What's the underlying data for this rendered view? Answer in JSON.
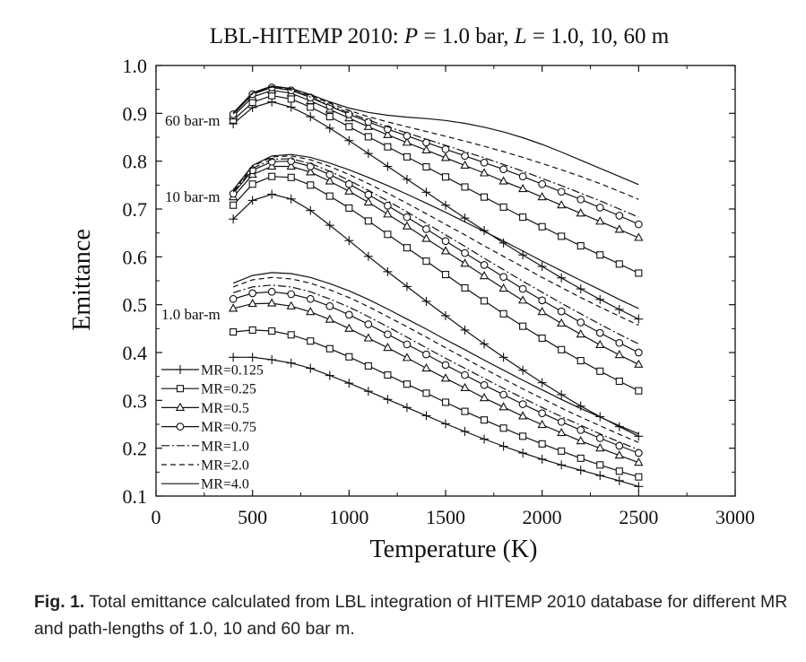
{
  "chart_data": {
    "type": "line",
    "title": "LBL-HITEMP 2010: P = 1.0 bar, L = 1.0, 10, 60 m",
    "title_parts": {
      "prefix": "LBL-HITEMP 2010: ",
      "p_symbol": "P",
      "p_rest": " = 1.0 bar, ",
      "l_symbol": "L",
      "l_rest": " = 1.0, 10, 60 m"
    },
    "xlabel": "Temperature (K)",
    "ylabel": "Emittance",
    "xlim": [
      0,
      3000
    ],
    "ylim": [
      0.1,
      1.0
    ],
    "xticks": [
      0,
      500,
      1000,
      1500,
      2000,
      2500,
      3000
    ],
    "yticks": [
      "0.1",
      "0.2",
      "0.3",
      "0.4",
      "0.5",
      "0.6",
      "0.7",
      "0.8",
      "0.9",
      "1.0"
    ],
    "grid": false,
    "legend_position": "bottom-left",
    "x": [
      400,
      500,
      600,
      700,
      800,
      900,
      1000,
      1100,
      1200,
      1300,
      1400,
      1500,
      1600,
      1700,
      1800,
      1900,
      2000,
      2100,
      2200,
      2300,
      2400,
      2500
    ],
    "mr_series": [
      {
        "name": "MR=0.125",
        "marker": "plus",
        "dash": "solid"
      },
      {
        "name": "MR=0.25",
        "marker": "square",
        "dash": "solid"
      },
      {
        "name": "MR=0.5",
        "marker": "triangle",
        "dash": "solid"
      },
      {
        "name": "MR=0.75",
        "marker": "circle",
        "dash": "solid"
      },
      {
        "name": "MR=1.0",
        "marker": "none",
        "dash": "dashdot"
      },
      {
        "name": "MR=2.0",
        "marker": "none",
        "dash": "dashed"
      },
      {
        "name": "MR=4.0",
        "marker": "none",
        "dash": "solid"
      }
    ],
    "groups": [
      {
        "label": "1.0 bar-m",
        "series": [
          {
            "name": "MR=0.125",
            "values": [
              0.39,
              0.39,
              0.385,
              0.378,
              0.367,
              0.352,
              0.336,
              0.319,
              0.302,
              0.285,
              0.268,
              0.251,
              0.235,
              0.219,
              0.204,
              0.19,
              0.177,
              0.165,
              0.154,
              0.143,
              0.132,
              0.12
            ]
          },
          {
            "name": "MR=0.25",
            "values": [
              0.443,
              0.447,
              0.445,
              0.437,
              0.424,
              0.408,
              0.391,
              0.372,
              0.353,
              0.334,
              0.315,
              0.296,
              0.277,
              0.259,
              0.242,
              0.225,
              0.209,
              0.194,
              0.179,
              0.165,
              0.152,
              0.14
            ]
          },
          {
            "name": "MR=0.5",
            "values": [
              0.492,
              0.502,
              0.503,
              0.497,
              0.485,
              0.469,
              0.45,
              0.43,
              0.41,
              0.389,
              0.367,
              0.346,
              0.326,
              0.305,
              0.286,
              0.267,
              0.249,
              0.232,
              0.215,
              0.2,
              0.185,
              0.17
            ]
          },
          {
            "name": "MR=0.75",
            "values": [
              0.512,
              0.524,
              0.527,
              0.522,
              0.512,
              0.497,
              0.479,
              0.459,
              0.438,
              0.417,
              0.396,
              0.374,
              0.353,
              0.332,
              0.312,
              0.292,
              0.273,
              0.255,
              0.238,
              0.221,
              0.205,
              0.19
            ]
          },
          {
            "name": "MR=1.0",
            "values": [
              0.525,
              0.537,
              0.541,
              0.537,
              0.527,
              0.512,
              0.495,
              0.475,
              0.454,
              0.432,
              0.41,
              0.388,
              0.367,
              0.346,
              0.325,
              0.305,
              0.285,
              0.266,
              0.248,
              0.23,
              0.213,
              0.197
            ]
          },
          {
            "name": "MR=2.0",
            "values": [
              0.537,
              0.552,
              0.557,
              0.554,
              0.545,
              0.531,
              0.515,
              0.496,
              0.475,
              0.454,
              0.432,
              0.41,
              0.388,
              0.366,
              0.345,
              0.324,
              0.304,
              0.284,
              0.265,
              0.247,
              0.229,
              0.212
            ]
          },
          {
            "name": "MR=4.0",
            "values": [
              0.545,
              0.561,
              0.567,
              0.565,
              0.557,
              0.544,
              0.529,
              0.511,
              0.491,
              0.47,
              0.449,
              0.427,
              0.406,
              0.384,
              0.363,
              0.342,
              0.322,
              0.302,
              0.283,
              0.265,
              0.247,
              0.23
            ]
          }
        ]
      },
      {
        "label": "10 bar-m",
        "series": [
          {
            "name": "MR=0.125",
            "values": [
              0.679,
              0.718,
              0.731,
              0.721,
              0.697,
              0.666,
              0.634,
              0.601,
              0.569,
              0.538,
              0.507,
              0.477,
              0.447,
              0.418,
              0.39,
              0.363,
              0.337,
              0.312,
              0.288,
              0.266,
              0.245,
              0.225
            ]
          },
          {
            "name": "MR=0.25",
            "values": [
              0.708,
              0.752,
              0.768,
              0.766,
              0.75,
              0.727,
              0.702,
              0.675,
              0.647,
              0.619,
              0.591,
              0.563,
              0.535,
              0.508,
              0.481,
              0.455,
              0.43,
              0.406,
              0.383,
              0.361,
              0.34,
              0.32
            ]
          },
          {
            "name": "MR=0.5",
            "values": [
              0.725,
              0.772,
              0.789,
              0.789,
              0.777,
              0.758,
              0.737,
              0.714,
              0.689,
              0.664,
              0.638,
              0.612,
              0.586,
              0.56,
              0.534,
              0.509,
              0.485,
              0.461,
              0.438,
              0.416,
              0.395,
              0.375
            ]
          },
          {
            "name": "MR=0.75",
            "values": [
              0.732,
              0.781,
              0.799,
              0.8,
              0.789,
              0.772,
              0.752,
              0.73,
              0.707,
              0.683,
              0.658,
              0.633,
              0.608,
              0.583,
              0.558,
              0.533,
              0.509,
              0.486,
              0.463,
              0.441,
              0.42,
              0.4
            ]
          },
          {
            "name": "MR=1.0",
            "values": [
              0.735,
              0.785,
              0.804,
              0.805,
              0.795,
              0.779,
              0.76,
              0.739,
              0.717,
              0.694,
              0.67,
              0.646,
              0.622,
              0.597,
              0.573,
              0.549,
              0.526,
              0.503,
              0.481,
              0.459,
              0.438,
              0.418
            ]
          },
          {
            "name": "MR=2.0",
            "values": [
              0.738,
              0.789,
              0.809,
              0.811,
              0.803,
              0.789,
              0.772,
              0.753,
              0.733,
              0.712,
              0.69,
              0.668,
              0.646,
              0.623,
              0.601,
              0.579,
              0.557,
              0.536,
              0.515,
              0.495,
              0.476,
              0.457
            ]
          },
          {
            "name": "MR=4.0",
            "values": [
              0.74,
              0.791,
              0.811,
              0.814,
              0.808,
              0.796,
              0.782,
              0.766,
              0.749,
              0.731,
              0.712,
              0.693,
              0.673,
              0.653,
              0.633,
              0.612,
              0.591,
              0.571,
              0.551,
              0.531,
              0.511,
              0.492
            ]
          }
        ]
      },
      {
        "label": "60 bar-m",
        "series": [
          {
            "name": "MR=0.125",
            "values": [
              0.878,
              0.912,
              0.924,
              0.913,
              0.893,
              0.869,
              0.843,
              0.816,
              0.789,
              0.762,
              0.735,
              0.708,
              0.681,
              0.655,
              0.629,
              0.604,
              0.58,
              0.556,
              0.533,
              0.511,
              0.49,
              0.47
            ]
          },
          {
            "name": "MR=0.25",
            "values": [
              0.886,
              0.923,
              0.937,
              0.93,
              0.913,
              0.893,
              0.872,
              0.851,
              0.83,
              0.809,
              0.788,
              0.767,
              0.746,
              0.725,
              0.704,
              0.683,
              0.663,
              0.643,
              0.623,
              0.604,
              0.585,
              0.566
            ]
          },
          {
            "name": "MR=0.5",
            "values": [
              0.894,
              0.934,
              0.948,
              0.942,
              0.926,
              0.908,
              0.89,
              0.872,
              0.855,
              0.839,
              0.823,
              0.807,
              0.791,
              0.775,
              0.758,
              0.742,
              0.725,
              0.708,
              0.691,
              0.674,
              0.657,
              0.64
            ]
          },
          {
            "name": "MR=0.75",
            "values": [
              0.898,
              0.94,
              0.954,
              0.948,
              0.933,
              0.915,
              0.898,
              0.882,
              0.867,
              0.853,
              0.839,
              0.825,
              0.811,
              0.797,
              0.783,
              0.768,
              0.752,
              0.736,
              0.72,
              0.703,
              0.686,
              0.668
            ]
          },
          {
            "name": "MR=1.0",
            "values": [
              0.899,
              0.941,
              0.955,
              0.949,
              0.934,
              0.917,
              0.901,
              0.886,
              0.872,
              0.859,
              0.846,
              0.833,
              0.82,
              0.807,
              0.793,
              0.779,
              0.764,
              0.749,
              0.733,
              0.717,
              0.7,
              0.683
            ]
          },
          {
            "name": "MR=2.0",
            "values": [
              0.9,
              0.942,
              0.956,
              0.951,
              0.937,
              0.921,
              0.906,
              0.893,
              0.882,
              0.872,
              0.862,
              0.852,
              0.842,
              0.831,
              0.82,
              0.808,
              0.795,
              0.782,
              0.768,
              0.753,
              0.737,
              0.72
            ]
          },
          {
            "name": "MR=4.0",
            "values": [
              0.901,
              0.943,
              0.957,
              0.952,
              0.939,
              0.924,
              0.911,
              0.902,
              0.896,
              0.892,
              0.889,
              0.885,
              0.879,
              0.871,
              0.861,
              0.849,
              0.835,
              0.819,
              0.802,
              0.785,
              0.768,
              0.751
            ]
          }
        ]
      }
    ]
  },
  "caption": {
    "label": "Fig. 1.",
    "text": " Total emittance calculated from LBL integration of HITEMP 2010 database for different MR and path-lengths of 1.0, 10 and 60 bar m."
  }
}
